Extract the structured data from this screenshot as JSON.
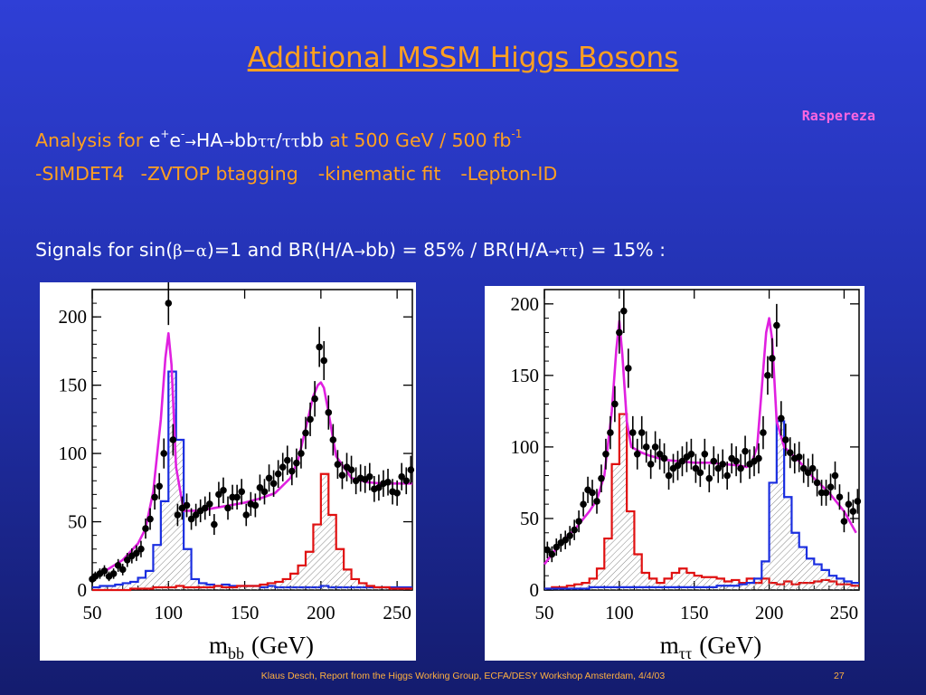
{
  "slide": {
    "title": "Additional MSSM Higgs Bosons",
    "author": "Raspereza",
    "analysis": {
      "prefix": "Analysis for ",
      "e": "e",
      "plus": "+",
      "minus": "-",
      "arrow": "→",
      "ha": "HA",
      "bb": "bb",
      "tautau": "ττ",
      "slash": "/",
      "suffix": " at 500 GeV / 500 fb",
      "suffix_exp": "-1"
    },
    "tools": [
      "-SIMDET4",
      "-ZVTOP btagging",
      "-kinematic fit",
      "-Lepton-ID"
    ],
    "signals": {
      "prefix": "Signals for sin(",
      "beta_alpha": "β−α",
      "mid": ")=1 and BR(H/A",
      "bb_part": "bb) = 85% / BR(H/A",
      "tau_part": "ττ",
      "end": ") = 15% :"
    },
    "footer": "Klaus Desch, Report from the Higgs Working Group, ECFA/DESY Workshop Amsterdam, 4/4/03",
    "page": "27"
  },
  "colors": {
    "title": "#ffa020",
    "author": "#ff66e0",
    "total_fit": "#e020e0",
    "A_or_H_blue": "#1a2ee0",
    "H_or_A_red": "#e01010"
  },
  "chart_data": [
    {
      "type": "line",
      "xlabel": "m",
      "xlabel_sub": "bb",
      "xlabel_unit": "(GeV)",
      "xlim": [
        50,
        260
      ],
      "ylim": [
        0,
        220
      ],
      "xticks": [
        "50",
        "100",
        "150",
        "200",
        "250"
      ],
      "yticks": [
        "0",
        "50",
        "100",
        "150",
        "200"
      ],
      "series": [
        {
          "color": "#1a2ee0",
          "kind": "hist",
          "hatched": true,
          "x": [
            50,
            55,
            60,
            65,
            70,
            75,
            80,
            85,
            90,
            95,
            100,
            105,
            110,
            115,
            120,
            125,
            130,
            135,
            140,
            145,
            150,
            155,
            160,
            165,
            170,
            175,
            180,
            185,
            190,
            195,
            200,
            205,
            210,
            215,
            220,
            225,
            230,
            235,
            240,
            245,
            250,
            255,
            260
          ],
          "values": [
            2,
            3,
            3,
            4,
            5,
            6,
            9,
            14,
            33,
            65,
            160,
            110,
            30,
            8,
            5,
            4,
            3,
            4,
            3,
            3,
            3,
            3,
            2,
            3,
            2,
            2,
            2,
            2,
            2,
            2,
            3,
            2,
            2,
            2,
            2,
            2,
            2,
            2,
            2,
            2,
            2,
            2
          ]
        },
        {
          "color": "#e01010",
          "kind": "hist",
          "hatched": true,
          "x": [
            50,
            55,
            60,
            65,
            70,
            75,
            80,
            85,
            90,
            95,
            100,
            105,
            110,
            115,
            120,
            125,
            130,
            135,
            140,
            145,
            150,
            155,
            160,
            165,
            170,
            175,
            180,
            185,
            190,
            195,
            200,
            205,
            210,
            215,
            220,
            225,
            230,
            235,
            240,
            245,
            250,
            255,
            260
          ],
          "values": [
            0,
            0,
            0,
            0,
            0,
            1,
            1,
            1,
            2,
            2,
            2,
            3,
            2,
            2,
            2,
            2,
            3,
            2,
            2,
            3,
            3,
            3,
            4,
            5,
            6,
            8,
            12,
            18,
            28,
            48,
            85,
            55,
            30,
            15,
            8,
            5,
            3,
            2,
            2,
            1,
            1,
            1
          ]
        },
        {
          "color": "#e020e0",
          "kind": "curve",
          "x": [
            50,
            60,
            70,
            80,
            85,
            90,
            95,
            98,
            100,
            102,
            105,
            110,
            120,
            130,
            140,
            150,
            160,
            170,
            180,
            185,
            190,
            195,
            198,
            200,
            202,
            205,
            210,
            220,
            230,
            240,
            250,
            260
          ],
          "values": [
            8,
            15,
            22,
            34,
            45,
            72,
            125,
            170,
            188,
            165,
            90,
            58,
            58,
            60,
            62,
            64,
            67,
            71,
            82,
            95,
            118,
            142,
            150,
            152,
            148,
            130,
            98,
            82,
            79,
            78,
            78,
            78
          ]
        },
        {
          "color": "#000000",
          "kind": "points",
          "x": [
            50,
            52,
            55,
            58,
            61,
            64,
            67,
            70,
            73,
            76,
            79,
            82,
            85,
            88,
            91,
            94,
            97,
            100,
            103,
            106,
            109,
            112,
            115,
            118,
            121,
            124,
            127,
            130,
            133,
            136,
            139,
            142,
            145,
            148,
            151,
            154,
            157,
            160,
            163,
            166,
            169,
            172,
            175,
            178,
            181,
            184,
            187,
            190,
            193,
            196,
            199,
            202,
            205,
            208,
            211,
            214,
            217,
            220,
            223,
            226,
            229,
            232,
            235,
            238,
            241,
            244,
            247,
            250,
            253,
            256,
            259
          ],
          "values": [
            8,
            10,
            12,
            14,
            10,
            12,
            18,
            15,
            22,
            25,
            27,
            30,
            45,
            52,
            68,
            76,
            100,
            210,
            110,
            55,
            60,
            62,
            52,
            55,
            58,
            60,
            63,
            48,
            70,
            73,
            60,
            68,
            68,
            72,
            55,
            63,
            62,
            75,
            72,
            82,
            78,
            85,
            90,
            95,
            87,
            93,
            100,
            115,
            125,
            140,
            178,
            168,
            130,
            110,
            92,
            84,
            90,
            88,
            80,
            82,
            81,
            83,
            74,
            75,
            78,
            79,
            72,
            71,
            83,
            80,
            88
          ]
        }
      ]
    },
    {
      "type": "line",
      "xlabel": "m",
      "xlabel_sub": "ττ",
      "xlabel_unit": "(GeV)",
      "xlim": [
        50,
        260
      ],
      "ylim": [
        0,
        210
      ],
      "xticks": [
        "50",
        "100",
        "150",
        "200",
        "250"
      ],
      "yticks": [
        "0",
        "50",
        "100",
        "150",
        "200"
      ],
      "series": [
        {
          "color": "#e01010",
          "kind": "hist",
          "hatched": true,
          "x": [
            50,
            55,
            60,
            65,
            70,
            75,
            80,
            85,
            90,
            95,
            100,
            105,
            110,
            115,
            120,
            125,
            130,
            135,
            140,
            145,
            150,
            155,
            160,
            165,
            170,
            175,
            180,
            185,
            190,
            195,
            200,
            205,
            210,
            215,
            220,
            225,
            230,
            235,
            240,
            245,
            250,
            255,
            260
          ],
          "values": [
            1,
            2,
            2,
            3,
            4,
            5,
            8,
            15,
            36,
            88,
            123,
            55,
            25,
            12,
            8,
            5,
            8,
            12,
            15,
            12,
            10,
            9,
            9,
            8,
            6,
            7,
            5,
            8,
            5,
            8,
            5,
            4,
            6,
            4,
            5,
            5,
            6,
            7,
            6,
            4,
            4,
            3
          ]
        },
        {
          "color": "#1a2ee0",
          "kind": "hist",
          "hatched": true,
          "x": [
            50,
            55,
            60,
            65,
            70,
            75,
            80,
            85,
            90,
            95,
            100,
            105,
            110,
            115,
            120,
            125,
            130,
            135,
            140,
            145,
            150,
            155,
            160,
            165,
            170,
            175,
            180,
            185,
            190,
            195,
            200,
            205,
            210,
            215,
            220,
            225,
            230,
            235,
            240,
            245,
            250,
            255,
            260
          ],
          "values": [
            1,
            1,
            1,
            1,
            1,
            1,
            2,
            2,
            2,
            2,
            2,
            2,
            2,
            2,
            2,
            2,
            2,
            2,
            2,
            2,
            2,
            2,
            2,
            3,
            3,
            3,
            4,
            5,
            8,
            20,
            75,
            118,
            65,
            40,
            30,
            22,
            18,
            14,
            10,
            8,
            6,
            5
          ]
        },
        {
          "color": "#e020e0",
          "kind": "curve",
          "x": [
            50,
            60,
            70,
            80,
            85,
            90,
            95,
            98,
            100,
            102,
            105,
            108,
            115,
            120,
            130,
            140,
            150,
            160,
            170,
            180,
            185,
            188,
            192,
            195,
            198,
            200,
            202,
            205,
            210,
            220,
            230,
            240,
            250,
            258
          ],
          "values": [
            18,
            32,
            42,
            55,
            63,
            80,
            125,
            168,
            188,
            165,
            118,
            100,
            96,
            94,
            91,
            90,
            89,
            89,
            88,
            87,
            86,
            88,
            100,
            140,
            180,
            190,
            175,
            118,
            100,
            90,
            78,
            68,
            55,
            40
          ]
        },
        {
          "color": "#000000",
          "kind": "points",
          "x": [
            52,
            55,
            58,
            61,
            64,
            67,
            70,
            73,
            76,
            79,
            82,
            85,
            88,
            91,
            94,
            97,
            100,
            103,
            106,
            109,
            112,
            115,
            118,
            121,
            124,
            127,
            130,
            133,
            136,
            139,
            142,
            145,
            148,
            151,
            154,
            157,
            160,
            163,
            166,
            169,
            172,
            175,
            178,
            181,
            184,
            187,
            190,
            193,
            196,
            199,
            202,
            205,
            208,
            211,
            214,
            217,
            220,
            223,
            226,
            229,
            232,
            235,
            238,
            241,
            244,
            247,
            250,
            253,
            256,
            259
          ],
          "values": [
            28,
            25,
            30,
            33,
            35,
            38,
            42,
            48,
            60,
            70,
            68,
            62,
            78,
            95,
            110,
            130,
            180,
            195,
            155,
            110,
            95,
            110,
            100,
            88,
            100,
            95,
            92,
            80,
            85,
            87,
            90,
            93,
            95,
            85,
            82,
            95,
            78,
            90,
            85,
            88,
            80,
            92,
            90,
            85,
            97,
            88,
            90,
            92,
            110,
            150,
            162,
            185,
            120,
            105,
            96,
            92,
            93,
            85,
            82,
            85,
            75,
            68,
            68,
            72,
            80,
            65,
            48,
            60,
            55,
            62
          ]
        }
      ]
    }
  ]
}
